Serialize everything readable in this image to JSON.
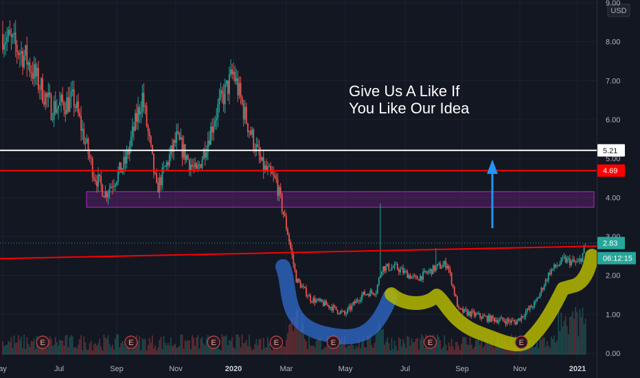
{
  "chart_data": {
    "type": "candlestick",
    "currency": "USD",
    "ylim": [
      0,
      9
    ],
    "y_ticks": [
      "9.00",
      "8.00",
      "7.00",
      "6.00",
      "5.00",
      "4.00",
      "3.00",
      "2.00",
      "1.00",
      "0.00"
    ],
    "x_ticks": [
      "ay",
      "Jul",
      "Sep",
      "Nov",
      "2020",
      "Mar",
      "May",
      "Jul",
      "Sep",
      "Nov",
      "2021"
    ],
    "x_ticks_bold": [
      "2020",
      "2021"
    ],
    "last_price": "2.83",
    "countdown": "06:12:15",
    "levels": [
      {
        "value": 5.21,
        "label": "5.21",
        "color": "#ffffff"
      },
      {
        "value": 4.69,
        "label": "4.69",
        "color": "#ff0000"
      }
    ],
    "support_zone": {
      "low": 3.75,
      "high": 4.15,
      "color": "#9c27b0"
    },
    "trendline": {
      "start": 2.43,
      "end": 2.75,
      "color": "#ff0000"
    },
    "annotation": [
      "Give Us A Like If",
      "You Like Our Idea"
    ],
    "earnings_marker": "E",
    "colors": {
      "up": "#26a69a",
      "down": "#ef5350",
      "accent_blue": "#2f6fd6",
      "accent_yellow": "#b5b800",
      "arrow": "#2196f3"
    },
    "price_path": [
      {
        "m": 0,
        "v": 8.2
      },
      {
        "m": 0.8,
        "v": 7.6
      },
      {
        "m": 1.7,
        "v": 6.3
      },
      {
        "m": 2.5,
        "v": 6.5
      },
      {
        "m": 3.2,
        "v": 4.6
      },
      {
        "m": 3.6,
        "v": 4.1
      },
      {
        "m": 4.3,
        "v": 4.9
      },
      {
        "m": 4.9,
        "v": 6.6
      },
      {
        "m": 5.4,
        "v": 4.2
      },
      {
        "m": 6.1,
        "v": 5.5
      },
      {
        "m": 6.8,
        "v": 4.6
      },
      {
        "m": 7.5,
        "v": 6.2
      },
      {
        "m": 8.1,
        "v": 7.2
      },
      {
        "m": 8.5,
        "v": 6.1
      },
      {
        "m": 9.1,
        "v": 4.8
      },
      {
        "m": 9.6,
        "v": 4.4
      },
      {
        "m": 10.0,
        "v": 3.1
      },
      {
        "m": 10.3,
        "v": 1.9
      },
      {
        "m": 10.8,
        "v": 1.4
      },
      {
        "m": 11.5,
        "v": 1.2
      },
      {
        "m": 12.0,
        "v": 1.0
      },
      {
        "m": 12.6,
        "v": 1.5
      },
      {
        "m": 13.1,
        "v": 1.6
      },
      {
        "m": 13.3,
        "v": 2.2
      },
      {
        "m": 13.8,
        "v": 2.2
      },
      {
        "m": 14.5,
        "v": 1.9
      },
      {
        "m": 15.2,
        "v": 2.2
      },
      {
        "m": 15.6,
        "v": 2.3
      },
      {
        "m": 16.0,
        "v": 1.1
      },
      {
        "m": 17.0,
        "v": 0.9
      },
      {
        "m": 18.0,
        "v": 0.8
      },
      {
        "m": 18.7,
        "v": 1.3
      },
      {
        "m": 19.2,
        "v": 2.1
      },
      {
        "m": 19.7,
        "v": 2.4
      },
      {
        "m": 20.2,
        "v": 2.3
      },
      {
        "m": 20.5,
        "v": 2.8
      }
    ],
    "earnings_months": [
      1.4,
      4.5,
      7.4,
      9.6,
      11.6,
      15.0,
      18.2
    ]
  }
}
